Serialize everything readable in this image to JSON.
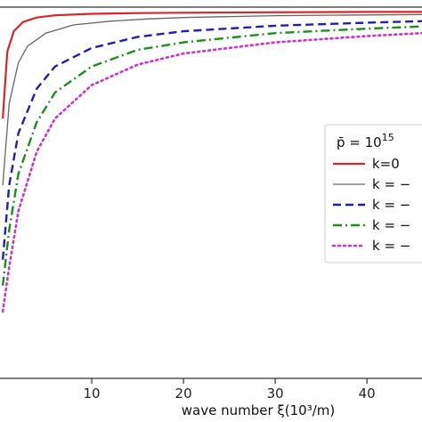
{
  "chart_data": {
    "type": "line",
    "xlabel": "wave number ξ(10³/m)",
    "ylabel": "",
    "title": "",
    "xlim": [
      0,
      46
    ],
    "ylim": [
      0,
      1.0
    ],
    "x_ticks": [
      10,
      20,
      30,
      40
    ],
    "x_tick_labels": [
      "10",
      "20",
      "30",
      "40"
    ],
    "grid": false,
    "legend": {
      "placement": "right",
      "title_text": "p̄ = 10",
      "title_exponent": "15"
    },
    "series": [
      {
        "name": "k=0",
        "color": "#d62728",
        "style": "solid",
        "x": [
          0.3,
          0.8,
          1.5,
          2.5,
          4,
          6,
          10,
          15,
          20,
          30,
          40,
          46
        ],
        "y": [
          0.7,
          0.88,
          0.935,
          0.96,
          0.972,
          0.978,
          0.982,
          0.984,
          0.985,
          0.986,
          0.987,
          0.987
        ]
      },
      {
        "name": "k = −",
        "color": "#666666",
        "style": "solid",
        "x": [
          0.3,
          1,
          2,
          3,
          5,
          8,
          12,
          16,
          20,
          30,
          40,
          46
        ],
        "y": [
          0.52,
          0.74,
          0.85,
          0.895,
          0.93,
          0.952,
          0.962,
          0.968,
          0.972,
          0.977,
          0.979,
          0.98
        ]
      },
      {
        "name": "k = −",
        "color": "#1f1fb4",
        "style": "dashed",
        "x": [
          0.3,
          1,
          2,
          4,
          6,
          10,
          15,
          20,
          30,
          40,
          46
        ],
        "y": [
          0.32,
          0.52,
          0.66,
          0.78,
          0.84,
          0.89,
          0.92,
          0.935,
          0.95,
          0.958,
          0.962
        ]
      },
      {
        "name": "k = −",
        "color": "#1a8f1a",
        "style": "dashdot",
        "x": [
          0.3,
          1,
          2,
          4,
          6,
          10,
          15,
          20,
          30,
          40,
          46
        ],
        "y": [
          0.25,
          0.4,
          0.55,
          0.69,
          0.77,
          0.84,
          0.885,
          0.905,
          0.93,
          0.942,
          0.948
        ]
      },
      {
        "name": "k = −",
        "color": "#cc33cc",
        "style": "dotted",
        "x": [
          0.3,
          1,
          2,
          4,
          6,
          10,
          15,
          20,
          30,
          40,
          46
        ],
        "y": [
          0.18,
          0.3,
          0.45,
          0.61,
          0.7,
          0.79,
          0.845,
          0.875,
          0.905,
          0.922,
          0.93
        ]
      }
    ]
  }
}
